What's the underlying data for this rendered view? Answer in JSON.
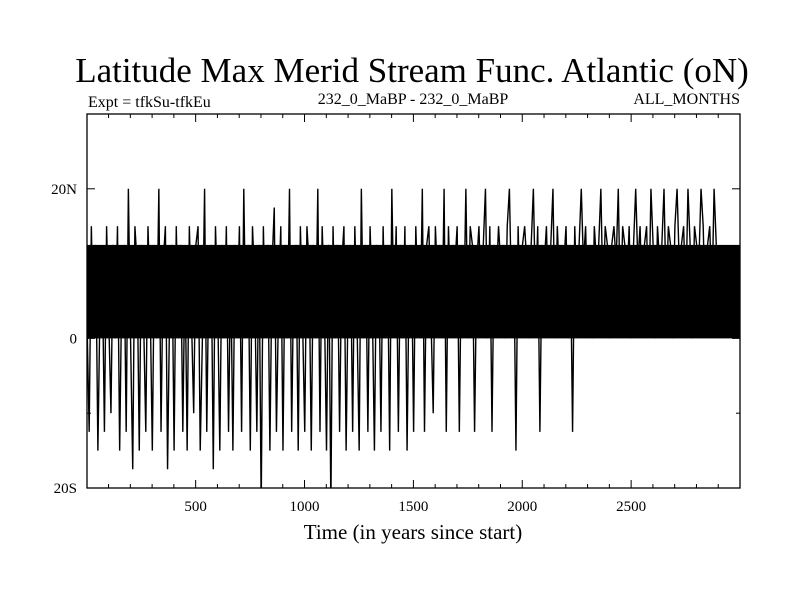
{
  "chart_data": {
    "type": "line",
    "title": "Latitude Max Merid Stream Func. Atlantic (oN)",
    "subtitle_left": "Expt = tfkSu-tfkEu",
    "subtitle_center": "232_0_MaBP - 232_0_MaBP",
    "subtitle_right": "ALL_MONTHS",
    "xlabel": "Time (in years since start)",
    "ylabel": "",
    "xlim": [
      1,
      3000
    ],
    "ylim": [
      -20,
      30
    ],
    "x_ticks": [
      500,
      1000,
      1500,
      2000,
      2500
    ],
    "x_tick_labels": [
      "500",
      "1000",
      "1500",
      "2000",
      "2500"
    ],
    "y_ticks": [
      -20,
      0,
      20
    ],
    "y_tick_labels": [
      "20S",
      "0",
      "20N"
    ],
    "grid": false,
    "levels": [
      -22.5,
      -17.5,
      -15,
      -12.5,
      -10,
      -7.5,
      -5,
      -2.5,
      0,
      2.5,
      5,
      7.5,
      10,
      12.5,
      15,
      17.5,
      20,
      22.5
    ],
    "series": [
      {
        "color": "#000000",
        "x_start": 1,
        "x_step": 10,
        "values": [
          2.5,
          -12.5,
          15,
          0,
          12.5,
          -15,
          5,
          10,
          -12.5,
          15,
          2.5,
          -10,
          12.5,
          0,
          15,
          -15,
          7.5,
          12.5,
          -12.5,
          20,
          0,
          -17.5,
          15,
          10,
          -15,
          12.5,
          2.5,
          -12.5,
          15,
          5,
          -15,
          12.5,
          0,
          20,
          -12.5,
          10,
          15,
          -17.5,
          5,
          12.5,
          -15,
          15,
          0,
          12.5,
          -12.5,
          10,
          -15,
          15,
          2.5,
          -10,
          12.5,
          15,
          -15,
          0,
          20,
          -12.5,
          10,
          12.5,
          -17.5,
          15,
          5,
          -15,
          12.5,
          0,
          15,
          -12.5,
          10,
          -15,
          12.5,
          2.5,
          15,
          -12.5,
          20,
          0,
          12.5,
          -15,
          15,
          7.5,
          -12.5,
          12.5,
          -22.5,
          15,
          0,
          12.5,
          -15,
          10,
          17.5,
          -12.5,
          5,
          15,
          -15,
          12.5,
          0,
          20,
          -12.5,
          10,
          12.5,
          -15,
          15,
          2.5,
          -12.5,
          15,
          10,
          -15,
          12.5,
          0,
          20,
          -12.5,
          15,
          5,
          -15,
          12.5,
          -22.5,
          15,
          0,
          12.5,
          -12.5,
          10,
          15,
          -15,
          7.5,
          12.5,
          -12.5,
          15,
          2.5,
          -15,
          20,
          0,
          12.5,
          -12.5,
          15,
          5,
          -15,
          12.5,
          10,
          -12.5,
          15,
          0,
          12.5,
          -15,
          20,
          2.5,
          15,
          -12.5,
          12.5,
          0,
          15,
          -15,
          10,
          12.5,
          -12.5,
          15,
          5,
          0,
          20,
          -12.5,
          12.5,
          15,
          2.5,
          -10,
          15,
          7.5,
          12.5,
          0,
          20,
          -12.5,
          15,
          5,
          12.5,
          10,
          15,
          -12.5,
          12.5,
          2.5,
          20,
          0,
          15,
          12.5,
          -12.5,
          10,
          15,
          5,
          12.5,
          20,
          0,
          15,
          -12.5,
          12.5,
          7.5,
          15,
          10,
          12.5,
          0,
          15,
          20,
          5,
          12.5,
          -15,
          15,
          2.5,
          12.5,
          15,
          10,
          0,
          12.5,
          20,
          5,
          15,
          -12.5,
          12.5,
          10,
          15,
          2.5,
          12.5,
          20,
          0,
          15,
          7.5,
          12.5,
          10,
          15,
          0,
          12.5,
          -12.5,
          15,
          5,
          12.5,
          20,
          10,
          15,
          2.5,
          12.5,
          0,
          15,
          10,
          12.5,
          20,
          5,
          15,
          12.5,
          0,
          12.5,
          15,
          10,
          20,
          2.5,
          15,
          12.5,
          7.5,
          15,
          0,
          12.5,
          20,
          10,
          15,
          5,
          12.5,
          15,
          2.5,
          20,
          12.5,
          0,
          15,
          10,
          12.5,
          20,
          5,
          15,
          12.5,
          0,
          15,
          20,
          10,
          12.5,
          15,
          5,
          20,
          12.5,
          0,
          15,
          12.5,
          10,
          20,
          15,
          2.5,
          12.5,
          15,
          5,
          20,
          12.5
        ]
      }
    ]
  }
}
